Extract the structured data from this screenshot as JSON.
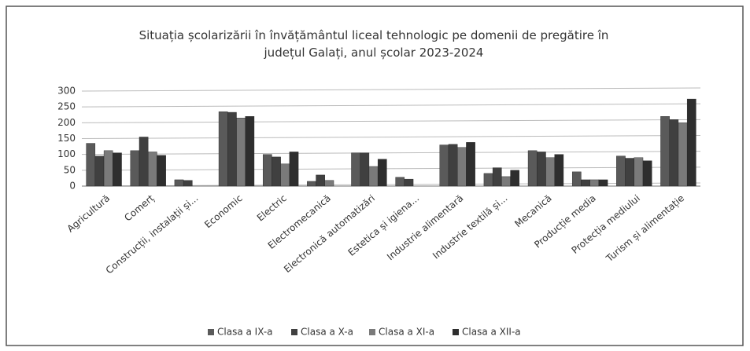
{
  "chart_data": {
    "type": "bar",
    "title": "Situația școlarizării în învățământul liceal tehnologic pe domenii de pregătire în județul Galați, anul școlar 2023-2024",
    "categories": [
      "Agricultură",
      "Comerț",
      "Construcții, instalații și...",
      "Economic",
      "Electric",
      "Electromecanică",
      "Electronică automatizări",
      "Estetica și igiena...",
      "Industrie alimentară",
      "Industrie textilă și...",
      "Mecanică",
      "Producție media",
      "Protecția mediului",
      "Turism și alimentație"
    ],
    "series": [
      {
        "name": "Clasa a IX-a",
        "color": "#5a5a5a",
        "values": [
          135,
          112,
          20,
          235,
          100,
          15,
          105,
          28,
          130,
          40,
          112,
          45,
          95,
          220
        ]
      },
      {
        "name": "Clasa a X-a",
        "color": "#404040",
        "values": [
          95,
          155,
          18,
          233,
          92,
          35,
          105,
          22,
          132,
          58,
          108,
          20,
          88,
          210
        ]
      },
      {
        "name": "Clasa a XI-a",
        "color": "#7a7a7a",
        "values": [
          112,
          108,
          0,
          215,
          70,
          18,
          62,
          0,
          122,
          30,
          90,
          20,
          90,
          200
        ]
      },
      {
        "name": "Clasa a XII-a",
        "color": "#2e2e2e",
        "values": [
          105,
          97,
          0,
          220,
          108,
          0,
          85,
          0,
          138,
          50,
          100,
          20,
          80,
          275
        ]
      }
    ],
    "ylim": [
      0,
      300
    ],
    "yticks": [
      0,
      50,
      100,
      150,
      200,
      250,
      300
    ],
    "grid": true,
    "legend": "bottom"
  }
}
